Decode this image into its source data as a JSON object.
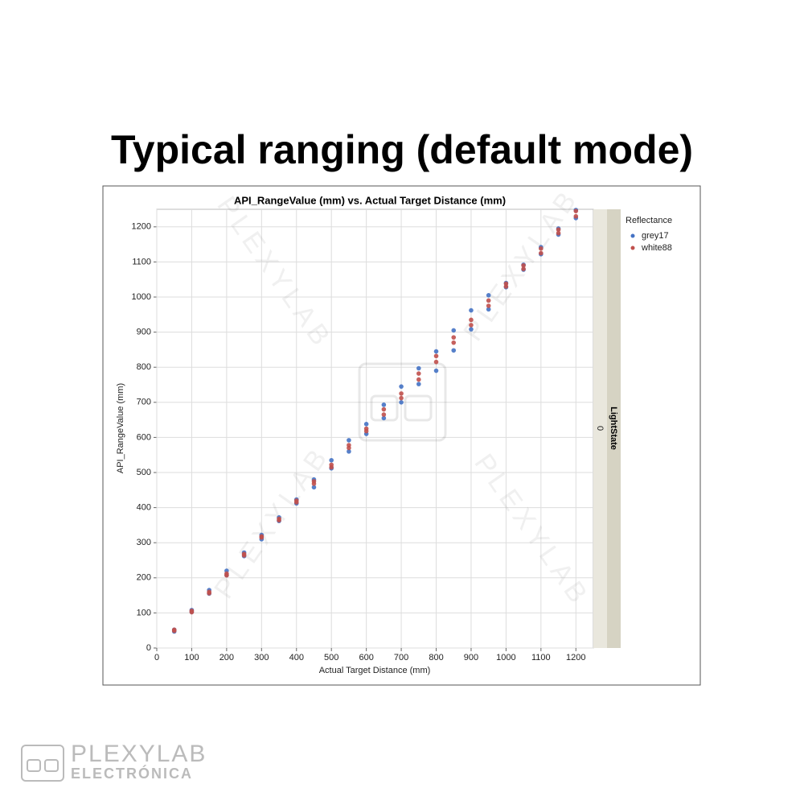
{
  "slide_title": "Typical ranging (default mode)",
  "watermark": "PLEXYLAB",
  "logo": {
    "brand": "PLEXYLAB",
    "subtitle": "ELECTRÓNICA"
  },
  "chart_data": {
    "type": "scatter",
    "title": "API_RangeValue (mm) vs. Actual Target Distance (mm)",
    "xlabel": "Actual Target Distance (mm)",
    "ylabel": "API_RangeValue (mm)",
    "xlim": [
      0,
      1250
    ],
    "ylim": [
      0,
      1250
    ],
    "xticks": [
      0,
      100,
      200,
      300,
      400,
      500,
      600,
      700,
      800,
      900,
      1000,
      1100,
      1200
    ],
    "yticks": [
      0,
      100,
      200,
      300,
      400,
      500,
      600,
      700,
      800,
      900,
      1000,
      1100,
      1200
    ],
    "grid": true,
    "legend_title": "Reflectance",
    "panel_label": "LightState",
    "panel_value": "0",
    "series": [
      {
        "name": "grey17",
        "color": "#4472c4",
        "x": [
          50,
          50,
          100,
          100,
          150,
          150,
          200,
          200,
          250,
          250,
          300,
          300,
          350,
          350,
          400,
          400,
          450,
          450,
          500,
          500,
          550,
          550,
          600,
          600,
          650,
          650,
          700,
          700,
          750,
          750,
          800,
          800,
          850,
          850,
          900,
          900,
          950,
          950,
          1000,
          1000,
          1050,
          1050,
          1100,
          1100,
          1150,
          1150,
          1200,
          1200
        ],
        "values": [
          47,
          52,
          103,
          108,
          155,
          165,
          208,
          220,
          262,
          272,
          310,
          322,
          362,
          372,
          412,
          423,
          458,
          480,
          512,
          535,
          560,
          592,
          610,
          638,
          655,
          693,
          700,
          745,
          752,
          797,
          790,
          845,
          848,
          905,
          908,
          962,
          965,
          1005,
          1028,
          1040,
          1078,
          1092,
          1122,
          1142,
          1178,
          1195,
          1225,
          1248
        ]
      },
      {
        "name": "white88",
        "color": "#c0504d",
        "x": [
          50,
          50,
          100,
          100,
          150,
          150,
          200,
          200,
          250,
          250,
          300,
          300,
          350,
          350,
          400,
          400,
          450,
          450,
          500,
          500,
          550,
          550,
          600,
          600,
          650,
          650,
          700,
          700,
          750,
          750,
          800,
          800,
          850,
          850,
          900,
          900,
          950,
          950,
          1000,
          1000,
          1050,
          1050,
          1100,
          1100,
          1150,
          1150,
          1200,
          1200
        ],
        "values": [
          49,
          52,
          102,
          106,
          156,
          160,
          207,
          212,
          264,
          268,
          315,
          318,
          364,
          368,
          415,
          420,
          468,
          475,
          515,
          522,
          570,
          578,
          618,
          625,
          665,
          680,
          712,
          725,
          765,
          782,
          815,
          832,
          870,
          885,
          920,
          935,
          975,
          990,
          1030,
          1038,
          1080,
          1090,
          1125,
          1138,
          1182,
          1192,
          1230,
          1245
        ]
      }
    ]
  }
}
